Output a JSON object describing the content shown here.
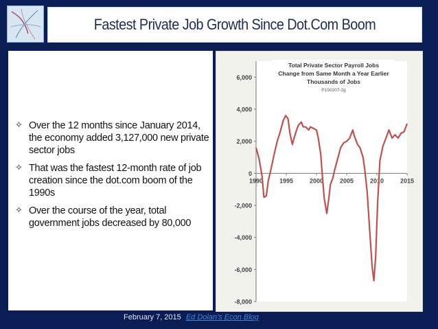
{
  "header": {
    "title": "Fastest Private Job Growth Since Dot.Com Boom"
  },
  "bullets": [
    "Over the 12 months since January 2014, the economy added 3,127,000 new private sector jobs",
    "That was the fastest 12-month rate of job creation since the dot.com boom of the 1990s",
    "Over the course of the year, total government jobs decreased by 80,000"
  ],
  "bullet_icon": "four-pointed-star-icon",
  "footer": {
    "date": "February 7, 2015",
    "link_text": "Ed Dolan's Econ Blog"
  },
  "chart_data": {
    "type": "line",
    "title": "Total Private Sector Payroll Jobs",
    "subtitle": "Change from Same Month a Year Earlier",
    "unit_label": "Thousands of Jobs",
    "code": "P150207-2g",
    "xlabel": "",
    "ylabel": "",
    "xlim": [
      1990,
      2015
    ],
    "ylim": [
      -8000,
      7000
    ],
    "x_ticks": [
      1990,
      1995,
      2000,
      2005,
      2010,
      2015
    ],
    "x_tick_labels": [
      "1990",
      "1995",
      "2000",
      "2005",
      "2010",
      "2015"
    ],
    "y_ticks": [
      6000,
      4000,
      2000,
      0,
      -2000,
      -4000,
      -6000,
      -8000
    ],
    "y_tick_labels": [
      "6,000",
      "4,000",
      "2,000",
      "0",
      "-2,000",
      "-4,000",
      "-6,000",
      "-8,000"
    ],
    "grid": false,
    "line_color": "#c0504d",
    "series": [
      {
        "x": [
          1990.0,
          1990.5,
          1991.0,
          1991.3,
          1991.7,
          1992.0,
          1992.5,
          1993.0,
          1993.5,
          1994.0,
          1994.5,
          1994.9,
          1995.3,
          1995.6,
          1996.0,
          1996.3,
          1996.7,
          1997.0,
          1997.5,
          1997.8,
          1998.2,
          1998.7,
          1999.0,
          1999.5,
          2000.0,
          2000.3,
          2000.7,
          2001.0,
          2001.3,
          2001.7,
          2002.0,
          2002.3,
          2002.7,
          2003.0,
          2003.5,
          2004.0,
          2004.5,
          2005.0,
          2005.5,
          2006.0,
          2006.3,
          2006.8,
          2007.2,
          2007.7,
          2008.0,
          2008.4,
          2008.8,
          2009.2,
          2009.5,
          2009.8,
          2010.1,
          2010.5,
          2011.0,
          2011.5,
          2012.0,
          2012.5,
          2013.0,
          2013.5,
          2014.0,
          2014.5,
          2015.0
        ],
        "y": [
          1600,
          900,
          -200,
          -1500,
          -1400,
          -500,
          300,
          1200,
          2000,
          2600,
          3300,
          3600,
          3400,
          2500,
          1800,
          2200,
          2700,
          3000,
          3200,
          2900,
          2900,
          2700,
          2900,
          2800,
          2700,
          2200,
          1200,
          -300,
          -1600,
          -2500,
          -1700,
          -700,
          -300,
          200,
          900,
          1600,
          1900,
          2000,
          2200,
          2700,
          2300,
          1800,
          1600,
          1000,
          200,
          -1200,
          -3500,
          -5800,
          -6700,
          -5200,
          -2000,
          800,
          1700,
          2200,
          2700,
          2200,
          2400,
          2200,
          2500,
          2600,
          3100
        ]
      }
    ]
  }
}
